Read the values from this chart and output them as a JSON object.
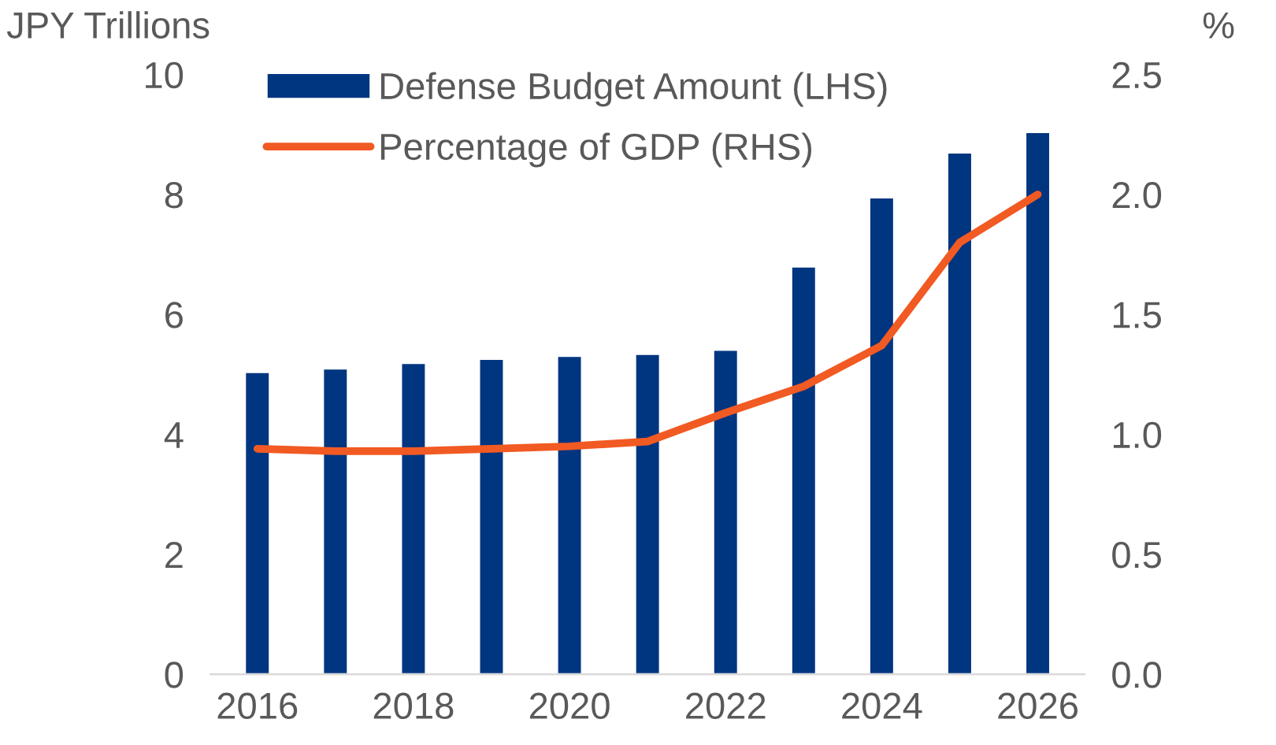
{
  "chart_data": {
    "type": "bar",
    "ylabel": "JPY Trillions",
    "y2label": "%",
    "categories": [
      "2016",
      null,
      "2018",
      null,
      "2020",
      null,
      "2022",
      null,
      "2024",
      null,
      "2026"
    ],
    "series": [
      {
        "name": "Defense Budget Amount (LHS)",
        "color": "#003580",
        "values": [
          5.04,
          5.1,
          5.19,
          5.26,
          5.31,
          5.34,
          5.41,
          6.8,
          7.95,
          8.7,
          9.04
        ]
      },
      {
        "name": "Percentage of GDP (RHS)",
        "type": "line",
        "axis": "y2",
        "color": "#f15a22",
        "values": [
          0.94,
          0.93,
          0.93,
          0.94,
          0.95,
          0.97,
          1.09,
          1.2,
          1.37,
          1.8,
          2.0
        ]
      }
    ],
    "ylim": [
      0,
      10
    ],
    "yticks": [
      0,
      2,
      4,
      6,
      8,
      10
    ],
    "y2lim": [
      0,
      2.5
    ],
    "y2ticks": [
      {
        "value": 0,
        "label": "0.0"
      },
      {
        "value": 0.5,
        "label": "0.5"
      },
      {
        "value": 1,
        "label": "1.0"
      },
      {
        "value": 1.5,
        "label": "1.5"
      },
      {
        "value": 2,
        "label": "2.0"
      },
      {
        "value": 2.5,
        "label": "2.5"
      }
    ],
    "grid": false,
    "legend": "top"
  }
}
